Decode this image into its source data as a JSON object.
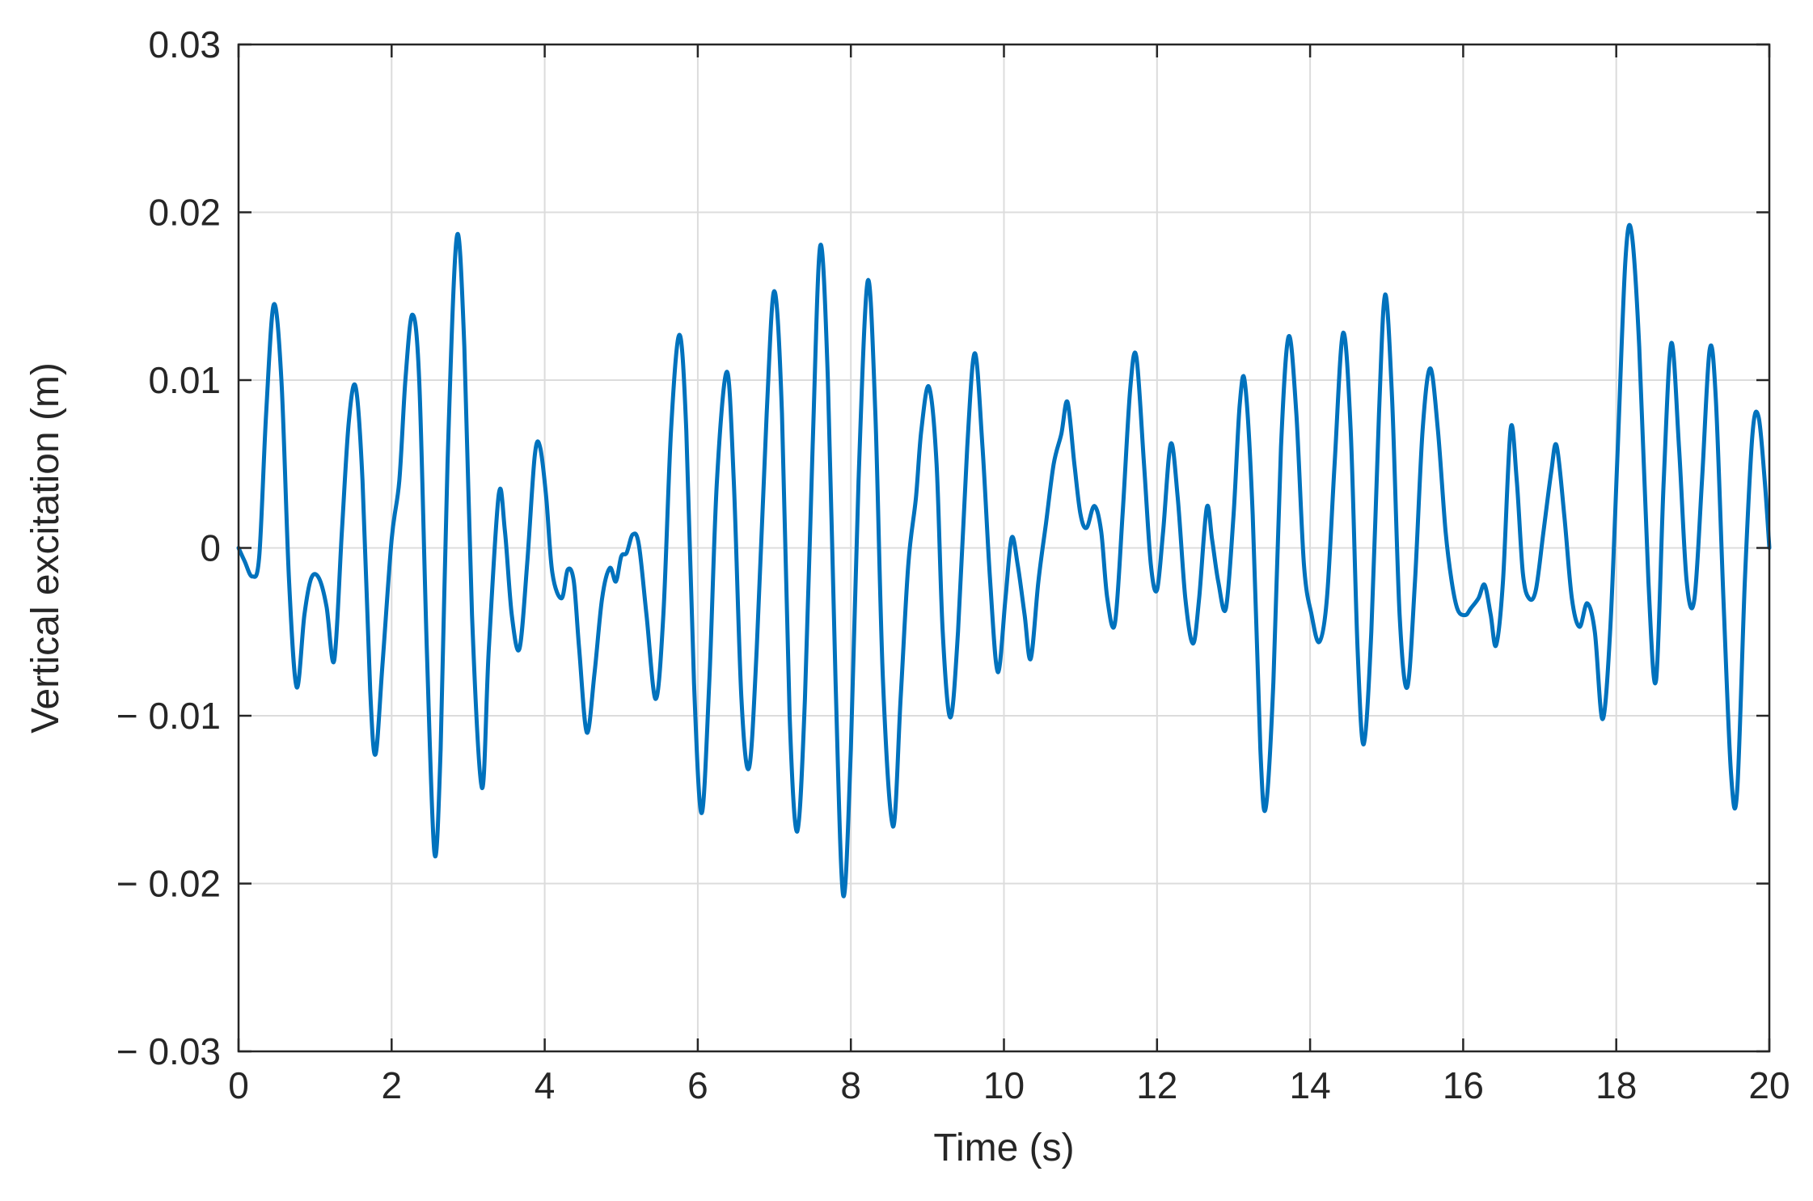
{
  "chart_data": {
    "type": "line",
    "title": "",
    "xlabel": "Time (s)",
    "ylabel": "Vertical excitation (m)",
    "xlim": [
      0,
      20
    ],
    "ylim": [
      -0.03,
      0.03
    ],
    "grid": true,
    "xticks": [
      0,
      2,
      4,
      6,
      8,
      10,
      12,
      14,
      16,
      18,
      20
    ],
    "xtick_labels": [
      "0",
      "2",
      "4",
      "6",
      "8",
      "10",
      "12",
      "14",
      "16",
      "18",
      "20"
    ],
    "yticks": [
      0.03,
      0.02,
      0.01,
      0,
      -0.01,
      -0.02,
      -0.03
    ],
    "ytick_labels": [
      "0.03",
      "0.02",
      "0.01",
      "0",
      "− 0.01",
      "− 0.02",
      "− 0.03"
    ],
    "series": [
      {
        "color": "#0072BD",
        "points": [
          [
            0,
            0
          ],
          [
            0.08,
            -0.0008
          ],
          [
            0.18,
            -0.0017
          ],
          [
            0.27,
            -0.0005
          ],
          [
            0.36,
            0.008
          ],
          [
            0.46,
            0.0145
          ],
          [
            0.56,
            0.01
          ],
          [
            0.66,
            -0.002
          ],
          [
            0.76,
            -0.0083
          ],
          [
            0.86,
            -0.004
          ],
          [
            0.95,
            -0.0018
          ],
          [
            1.05,
            -0.0018
          ],
          [
            1.15,
            -0.0035
          ],
          [
            1.25,
            -0.0067
          ],
          [
            1.35,
            0.001
          ],
          [
            1.44,
            0.0075
          ],
          [
            1.53,
            0.0096
          ],
          [
            1.62,
            0.004
          ],
          [
            1.72,
            -0.0085
          ],
          [
            1.79,
            -0.0123
          ],
          [
            1.88,
            -0.007
          ],
          [
            2.0,
            0.0005
          ],
          [
            2.1,
            0.004
          ],
          [
            2.18,
            0.01
          ],
          [
            2.27,
            0.0139
          ],
          [
            2.36,
            0.01
          ],
          [
            2.46,
            -0.006
          ],
          [
            2.56,
            -0.0182
          ],
          [
            2.64,
            -0.012
          ],
          [
            2.73,
            0.005
          ],
          [
            2.85,
            0.0185
          ],
          [
            2.95,
            0.012
          ],
          [
            3.05,
            -0.004
          ],
          [
            3.18,
            -0.0143
          ],
          [
            3.27,
            -0.006
          ],
          [
            3.4,
            0.0032
          ],
          [
            3.48,
            0.001
          ],
          [
            3.57,
            -0.004
          ],
          [
            3.67,
            -0.006
          ],
          [
            3.77,
            -0.001
          ],
          [
            3.87,
            0.0055
          ],
          [
            3.94,
            0.006
          ],
          [
            4.02,
            0.003
          ],
          [
            4.1,
            -0.0015
          ],
          [
            4.22,
            -0.003
          ],
          [
            4.3,
            -0.0013
          ],
          [
            4.38,
            -0.002
          ],
          [
            4.45,
            -0.006
          ],
          [
            4.55,
            -0.011
          ],
          [
            4.65,
            -0.0075
          ],
          [
            4.75,
            -0.003
          ],
          [
            4.85,
            -0.0012
          ],
          [
            4.93,
            -0.002
          ],
          [
            5.0,
            -0.0005
          ],
          [
            5.07,
            -0.0003
          ],
          [
            5.15,
            0.0008
          ],
          [
            5.23,
            0.0002
          ],
          [
            5.33,
            -0.004
          ],
          [
            5.45,
            -0.009
          ],
          [
            5.55,
            -0.004
          ],
          [
            5.65,
            0.007
          ],
          [
            5.76,
            0.0127
          ],
          [
            5.85,
            0.007
          ],
          [
            5.95,
            -0.008
          ],
          [
            6.05,
            -0.0158
          ],
          [
            6.15,
            -0.008
          ],
          [
            6.25,
            0.004
          ],
          [
            6.38,
            0.0105
          ],
          [
            6.47,
            0.004
          ],
          [
            6.57,
            -0.009
          ],
          [
            6.67,
            -0.0131
          ],
          [
            6.77,
            -0.006
          ],
          [
            6.9,
            0.008
          ],
          [
            7.0,
            0.0153
          ],
          [
            7.1,
            0.008
          ],
          [
            7.2,
            -0.01
          ],
          [
            7.3,
            -0.0169
          ],
          [
            7.4,
            -0.009
          ],
          [
            7.5,
            0.006
          ],
          [
            7.6,
            0.018
          ],
          [
            7.7,
            0.01
          ],
          [
            7.8,
            -0.008
          ],
          [
            7.9,
            -0.0207
          ],
          [
            8.0,
            -0.012
          ],
          [
            8.1,
            0.004
          ],
          [
            8.22,
            0.0159
          ],
          [
            8.32,
            0.008
          ],
          [
            8.42,
            -0.008
          ],
          [
            8.55,
            -0.0166
          ],
          [
            8.65,
            -0.009
          ],
          [
            8.75,
            -0.001
          ],
          [
            8.85,
            0.003
          ],
          [
            8.92,
            0.007
          ],
          [
            9.02,
            0.0096
          ],
          [
            9.12,
            0.005
          ],
          [
            9.2,
            -0.005
          ],
          [
            9.3,
            -0.0101
          ],
          [
            9.4,
            -0.005
          ],
          [
            9.52,
            0.006
          ],
          [
            9.62,
            0.0116
          ],
          [
            9.72,
            0.006
          ],
          [
            9.82,
            -0.002
          ],
          [
            9.92,
            -0.0074
          ],
          [
            10.02,
            -0.003
          ],
          [
            10.1,
            0.0006
          ],
          [
            10.18,
            -0.001
          ],
          [
            10.27,
            -0.004
          ],
          [
            10.35,
            -0.0066
          ],
          [
            10.45,
            -0.002
          ],
          [
            10.55,
            0.0015
          ],
          [
            10.65,
            0.005
          ],
          [
            10.75,
            0.0068
          ],
          [
            10.83,
            0.0087
          ],
          [
            10.92,
            0.005
          ],
          [
            11.0,
            0.002
          ],
          [
            11.08,
            0.0012
          ],
          [
            11.18,
            0.0025
          ],
          [
            11.27,
            0.001
          ],
          [
            11.35,
            -0.003
          ],
          [
            11.45,
            -0.0045
          ],
          [
            11.55,
            0.002
          ],
          [
            11.65,
            0.0095
          ],
          [
            11.73,
            0.0114
          ],
          [
            11.83,
            0.005
          ],
          [
            11.92,
            -0.001
          ],
          [
            12.0,
            -0.0025
          ],
          [
            12.08,
            0.001
          ],
          [
            12.18,
            0.0062
          ],
          [
            12.27,
            0.003
          ],
          [
            12.37,
            -0.003
          ],
          [
            12.47,
            -0.0057
          ],
          [
            12.55,
            -0.003
          ],
          [
            12.65,
            0.0024
          ],
          [
            12.72,
            0.0005
          ],
          [
            12.8,
            -0.002
          ],
          [
            12.9,
            -0.0036
          ],
          [
            13.0,
            0.002
          ],
          [
            13.08,
            0.0085
          ],
          [
            13.15,
            0.0098
          ],
          [
            13.25,
            0.002
          ],
          [
            13.35,
            -0.012
          ],
          [
            13.42,
            -0.0155
          ],
          [
            13.52,
            -0.008
          ],
          [
            13.62,
            0.006
          ],
          [
            13.72,
            0.0126
          ],
          [
            13.82,
            0.008
          ],
          [
            13.92,
            -0.001
          ],
          [
            14.02,
            -0.004
          ],
          [
            14.12,
            -0.0056
          ],
          [
            14.22,
            -0.003
          ],
          [
            14.32,
            0.005
          ],
          [
            14.43,
            0.0128
          ],
          [
            14.53,
            0.007
          ],
          [
            14.62,
            -0.006
          ],
          [
            14.7,
            -0.0117
          ],
          [
            14.8,
            -0.005
          ],
          [
            14.9,
            0.008
          ],
          [
            14.98,
            0.0151
          ],
          [
            15.07,
            0.009
          ],
          [
            15.17,
            -0.004
          ],
          [
            15.27,
            -0.0083
          ],
          [
            15.37,
            -0.002
          ],
          [
            15.47,
            0.007
          ],
          [
            15.57,
            0.0107
          ],
          [
            15.67,
            0.007
          ],
          [
            15.77,
            0.001
          ],
          [
            15.85,
            -0.002
          ],
          [
            15.93,
            -0.0037
          ],
          [
            16.03,
            -0.004
          ],
          [
            16.1,
            -0.0036
          ],
          [
            16.2,
            -0.003
          ],
          [
            16.28,
            -0.0022
          ],
          [
            16.36,
            -0.004
          ],
          [
            16.43,
            -0.0058
          ],
          [
            16.52,
            -0.002
          ],
          [
            16.62,
            0.0071
          ],
          [
            16.7,
            0.004
          ],
          [
            16.78,
            -0.0015
          ],
          [
            16.86,
            -0.003
          ],
          [
            16.95,
            -0.0025
          ],
          [
            17.05,
            0.001
          ],
          [
            17.15,
            0.0045
          ],
          [
            17.22,
            0.0061
          ],
          [
            17.32,
            0.002
          ],
          [
            17.42,
            -0.003
          ],
          [
            17.52,
            -0.0047
          ],
          [
            17.62,
            -0.0033
          ],
          [
            17.72,
            -0.005
          ],
          [
            17.82,
            -0.0102
          ],
          [
            17.92,
            -0.005
          ],
          [
            18.02,
            0.006
          ],
          [
            18.12,
            0.0172
          ],
          [
            18.2,
            0.0188
          ],
          [
            18.3,
            0.012
          ],
          [
            18.42,
            -0.002
          ],
          [
            18.52,
            -0.0079
          ],
          [
            18.62,
            0.004
          ],
          [
            18.72,
            0.0122
          ],
          [
            18.82,
            0.006
          ],
          [
            18.92,
            -0.002
          ],
          [
            19.02,
            -0.0031
          ],
          [
            19.12,
            0.004
          ],
          [
            19.22,
            0.0118
          ],
          [
            19.3,
            0.009
          ],
          [
            19.4,
            -0.003
          ],
          [
            19.5,
            -0.0135
          ],
          [
            19.58,
            -0.0145
          ],
          [
            19.68,
            -0.002
          ],
          [
            19.78,
            0.0068
          ],
          [
            19.86,
            0.0078
          ],
          [
            19.94,
            0.004
          ],
          [
            20.0,
            0
          ]
        ]
      }
    ]
  }
}
